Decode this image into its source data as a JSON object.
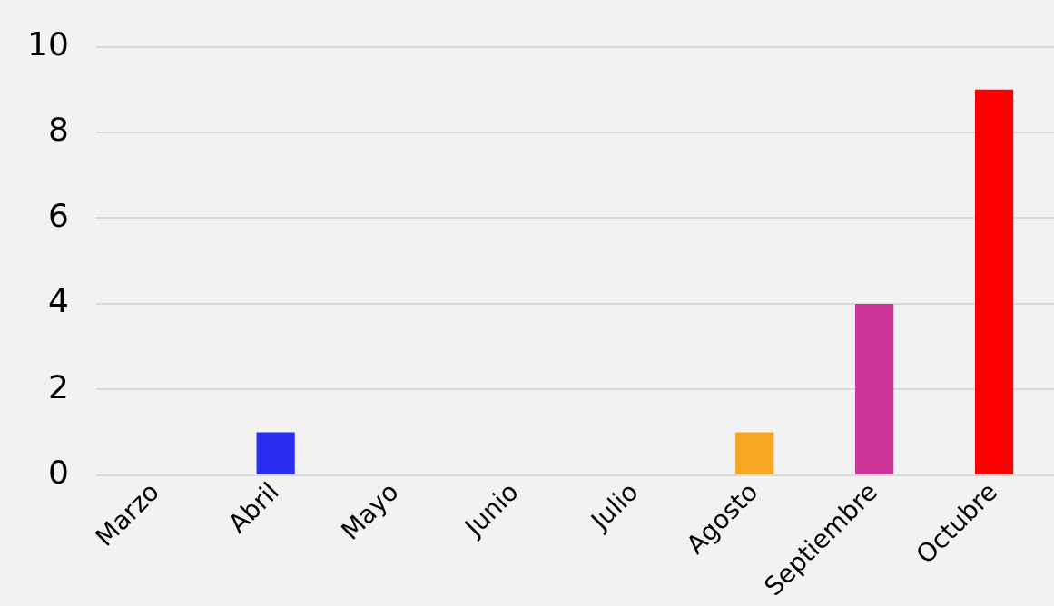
{
  "chart_data": {
    "type": "bar",
    "categories": [
      "Marzo",
      "Abril",
      "Mayo",
      "Junio",
      "Julio",
      "Agosto",
      "Septiembre",
      "Octubre"
    ],
    "values": [
      0,
      1,
      0,
      0,
      0,
      1,
      4,
      9
    ],
    "colors": [
      "#2a2ef0",
      "#2a2ef0",
      "#2a2ef0",
      "#2a2ef0",
      "#2a2ef0",
      "#f5a623",
      "#cc3399",
      "#ff0000"
    ],
    "ylim": [
      0,
      10
    ],
    "yticks": [
      0,
      2,
      4,
      6,
      8,
      10
    ],
    "grid": "y",
    "legend": false
  }
}
